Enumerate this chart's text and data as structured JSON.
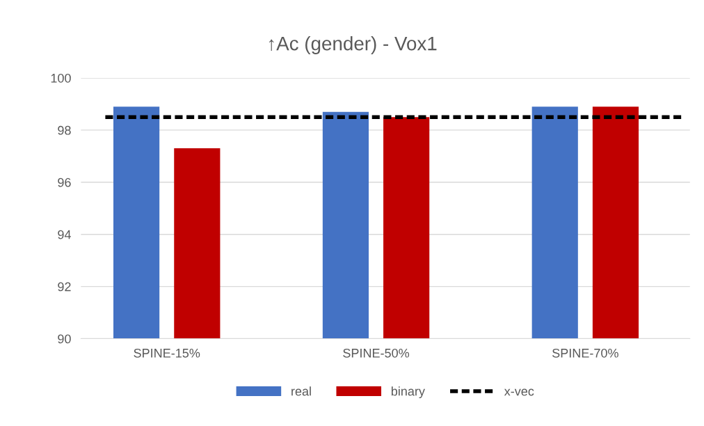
{
  "chart_data": {
    "type": "bar",
    "title": "↑Ac (gender) - Vox1",
    "categories": [
      "SPINE-15%",
      "SPINE-50%",
      "SPINE-70%"
    ],
    "series": [
      {
        "name": "real",
        "color": "#4472c4",
        "values": [
          98.9,
          98.7,
          98.9
        ]
      },
      {
        "name": "binary",
        "color": "#c00000",
        "values": [
          97.3,
          98.5,
          98.9
        ]
      }
    ],
    "ref_lines": [
      {
        "axis": "y",
        "value": 98.5,
        "label": "x-vec",
        "color": "#000000",
        "line_style": "dashed"
      }
    ],
    "ylim": [
      90,
      100
    ],
    "yticks": [
      90,
      92,
      94,
      96,
      98,
      100
    ],
    "grid": "y",
    "legend": "bottom"
  }
}
